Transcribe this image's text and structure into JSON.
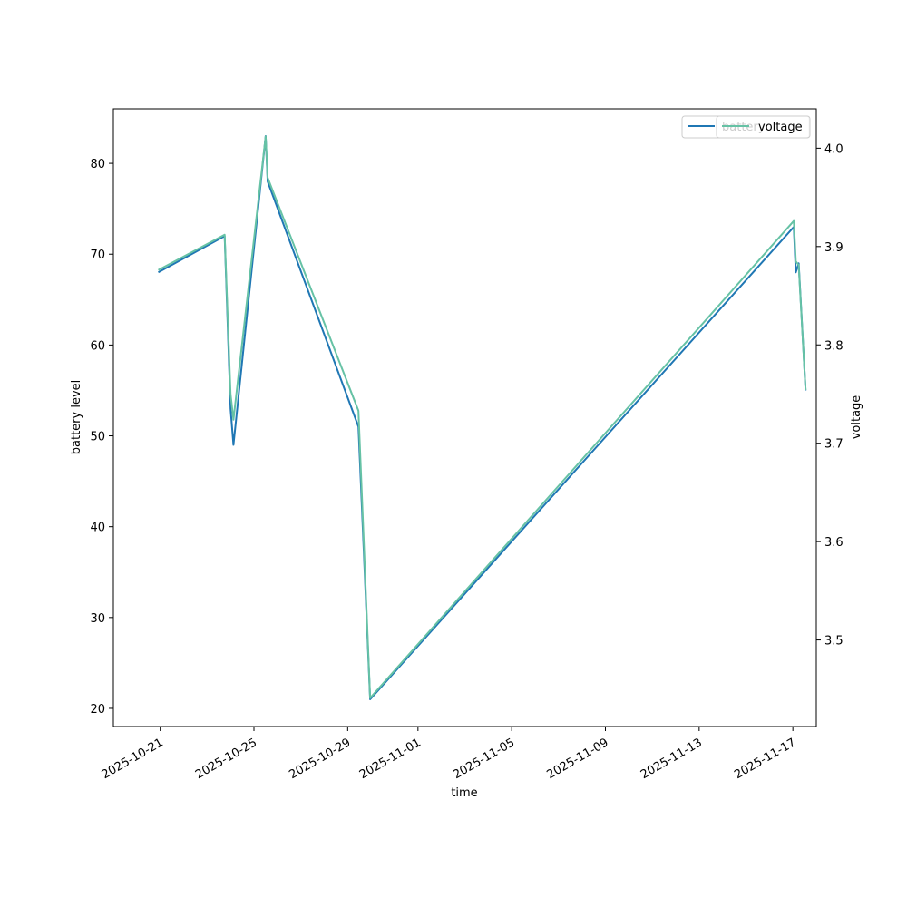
{
  "chart_data": {
    "type": "line",
    "xlabel": "time",
    "ylabel": "battery level",
    "y2label": "voltage",
    "xlim": [
      "2025-10-19",
      "2025-11-18"
    ],
    "ylim": [
      18,
      86
    ],
    "y2lim": [
      3.412,
      4.04
    ],
    "x_ticks": [
      "2025-10-21",
      "2025-10-25",
      "2025-10-29",
      "2025-11-01",
      "2025-11-05",
      "2025-11-09",
      "2025-11-13",
      "2025-11-17"
    ],
    "y_ticks": [
      20,
      30,
      40,
      50,
      60,
      70,
      80
    ],
    "y2_ticks": [
      "3.5",
      "3.6",
      "3.7",
      "3.8",
      "3.9",
      "4.0"
    ],
    "grid": false,
    "legend": "top-right",
    "series": [
      {
        "name": "battery",
        "axis": "left",
        "color": "#1f77b4",
        "points": [
          {
            "x": "2025-10-20 22:00",
            "y": 68
          },
          {
            "x": "2025-10-23 18:00",
            "y": 72
          },
          {
            "x": "2025-10-24 00:00",
            "y": 53
          },
          {
            "x": "2025-10-24 03:00",
            "y": 49
          },
          {
            "x": "2025-10-25 12:00",
            "y": 83
          },
          {
            "x": "2025-10-25 14:00",
            "y": 78
          },
          {
            "x": "2025-10-29 11:00",
            "y": 51
          },
          {
            "x": "2025-10-29 23:00",
            "y": 21
          },
          {
            "x": "2025-11-17 01:00",
            "y": 73
          },
          {
            "x": "2025-11-17 03:00",
            "y": 68
          },
          {
            "x": "2025-11-17 06:00",
            "y": 69
          },
          {
            "x": "2025-11-17 13:00",
            "y": 55
          }
        ]
      },
      {
        "name": "voltage",
        "axis": "right",
        "color": "#66c2a5",
        "points": [
          {
            "x": "2025-10-20 22:00",
            "y": 3.876
          },
          {
            "x": "2025-10-23 18:00",
            "y": 3.912
          },
          {
            "x": "2025-10-24 00:00",
            "y": 3.75
          },
          {
            "x": "2025-10-24 03:00",
            "y": 3.724
          },
          {
            "x": "2025-10-25 12:00",
            "y": 4.012
          },
          {
            "x": "2025-10-25 14:00",
            "y": 3.97
          },
          {
            "x": "2025-10-29 11:00",
            "y": 3.733
          },
          {
            "x": "2025-10-29 23:00",
            "y": 3.441
          },
          {
            "x": "2025-11-17 01:00",
            "y": 3.926
          },
          {
            "x": "2025-11-17 03:00",
            "y": 3.885
          },
          {
            "x": "2025-11-17 06:00",
            "y": 3.881
          },
          {
            "x": "2025-11-17 13:00",
            "y": 3.754
          }
        ]
      }
    ],
    "legend_entries": [
      "battery",
      "voltage"
    ]
  }
}
